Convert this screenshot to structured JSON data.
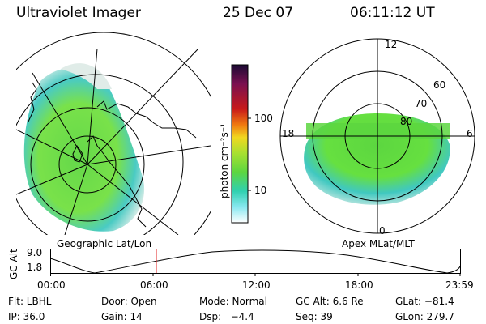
{
  "header": {
    "title": "Ultraviolet Imager",
    "date": "25 Dec 07",
    "time": "06:11:12 UT"
  },
  "colorbar": {
    "label": "photon cm⁻²s⁻¹",
    "ticks": [
      "100",
      "10"
    ],
    "colors": [
      "#1a0a33",
      "#7a1050",
      "#c81a1a",
      "#f07a10",
      "#f0d820",
      "#a8e030",
      "#5cd640",
      "#30d0b0",
      "#88e8f0",
      "#ffffff"
    ]
  },
  "left_map": {
    "caption": "Geographic Lat/Lon",
    "aurora_color": "#66e040",
    "edge_color": "#40c8c0"
  },
  "right_map": {
    "caption": "Apex MLat/MLT",
    "mlt_labels": {
      "top": "12",
      "left": "18",
      "right": "6",
      "bottom": "0"
    },
    "lat_labels": [
      "60",
      "70",
      "80"
    ]
  },
  "altitude_plot": {
    "ylabel": "GC Alt",
    "yticks": [
      "9.0",
      "1.8"
    ],
    "xticks": [
      "00:00",
      "06:00",
      "12:00",
      "18:00",
      "23:59"
    ],
    "marker_time_hours": 6.19
  },
  "info": {
    "row1": {
      "filter": "Flt: LBHL",
      "door": "Door: Open",
      "mode": "Mode: Normal",
      "gc_alt": "GC Alt: 6.6 Re",
      "glat": "GLat: −81.4"
    },
    "row2": {
      "ip": "IP: 36.0",
      "gain": "Gain: 14",
      "dsp": "Dsp:   −4.4",
      "seq": "Seq: 39",
      "glon": "GLon: 279.7"
    }
  }
}
